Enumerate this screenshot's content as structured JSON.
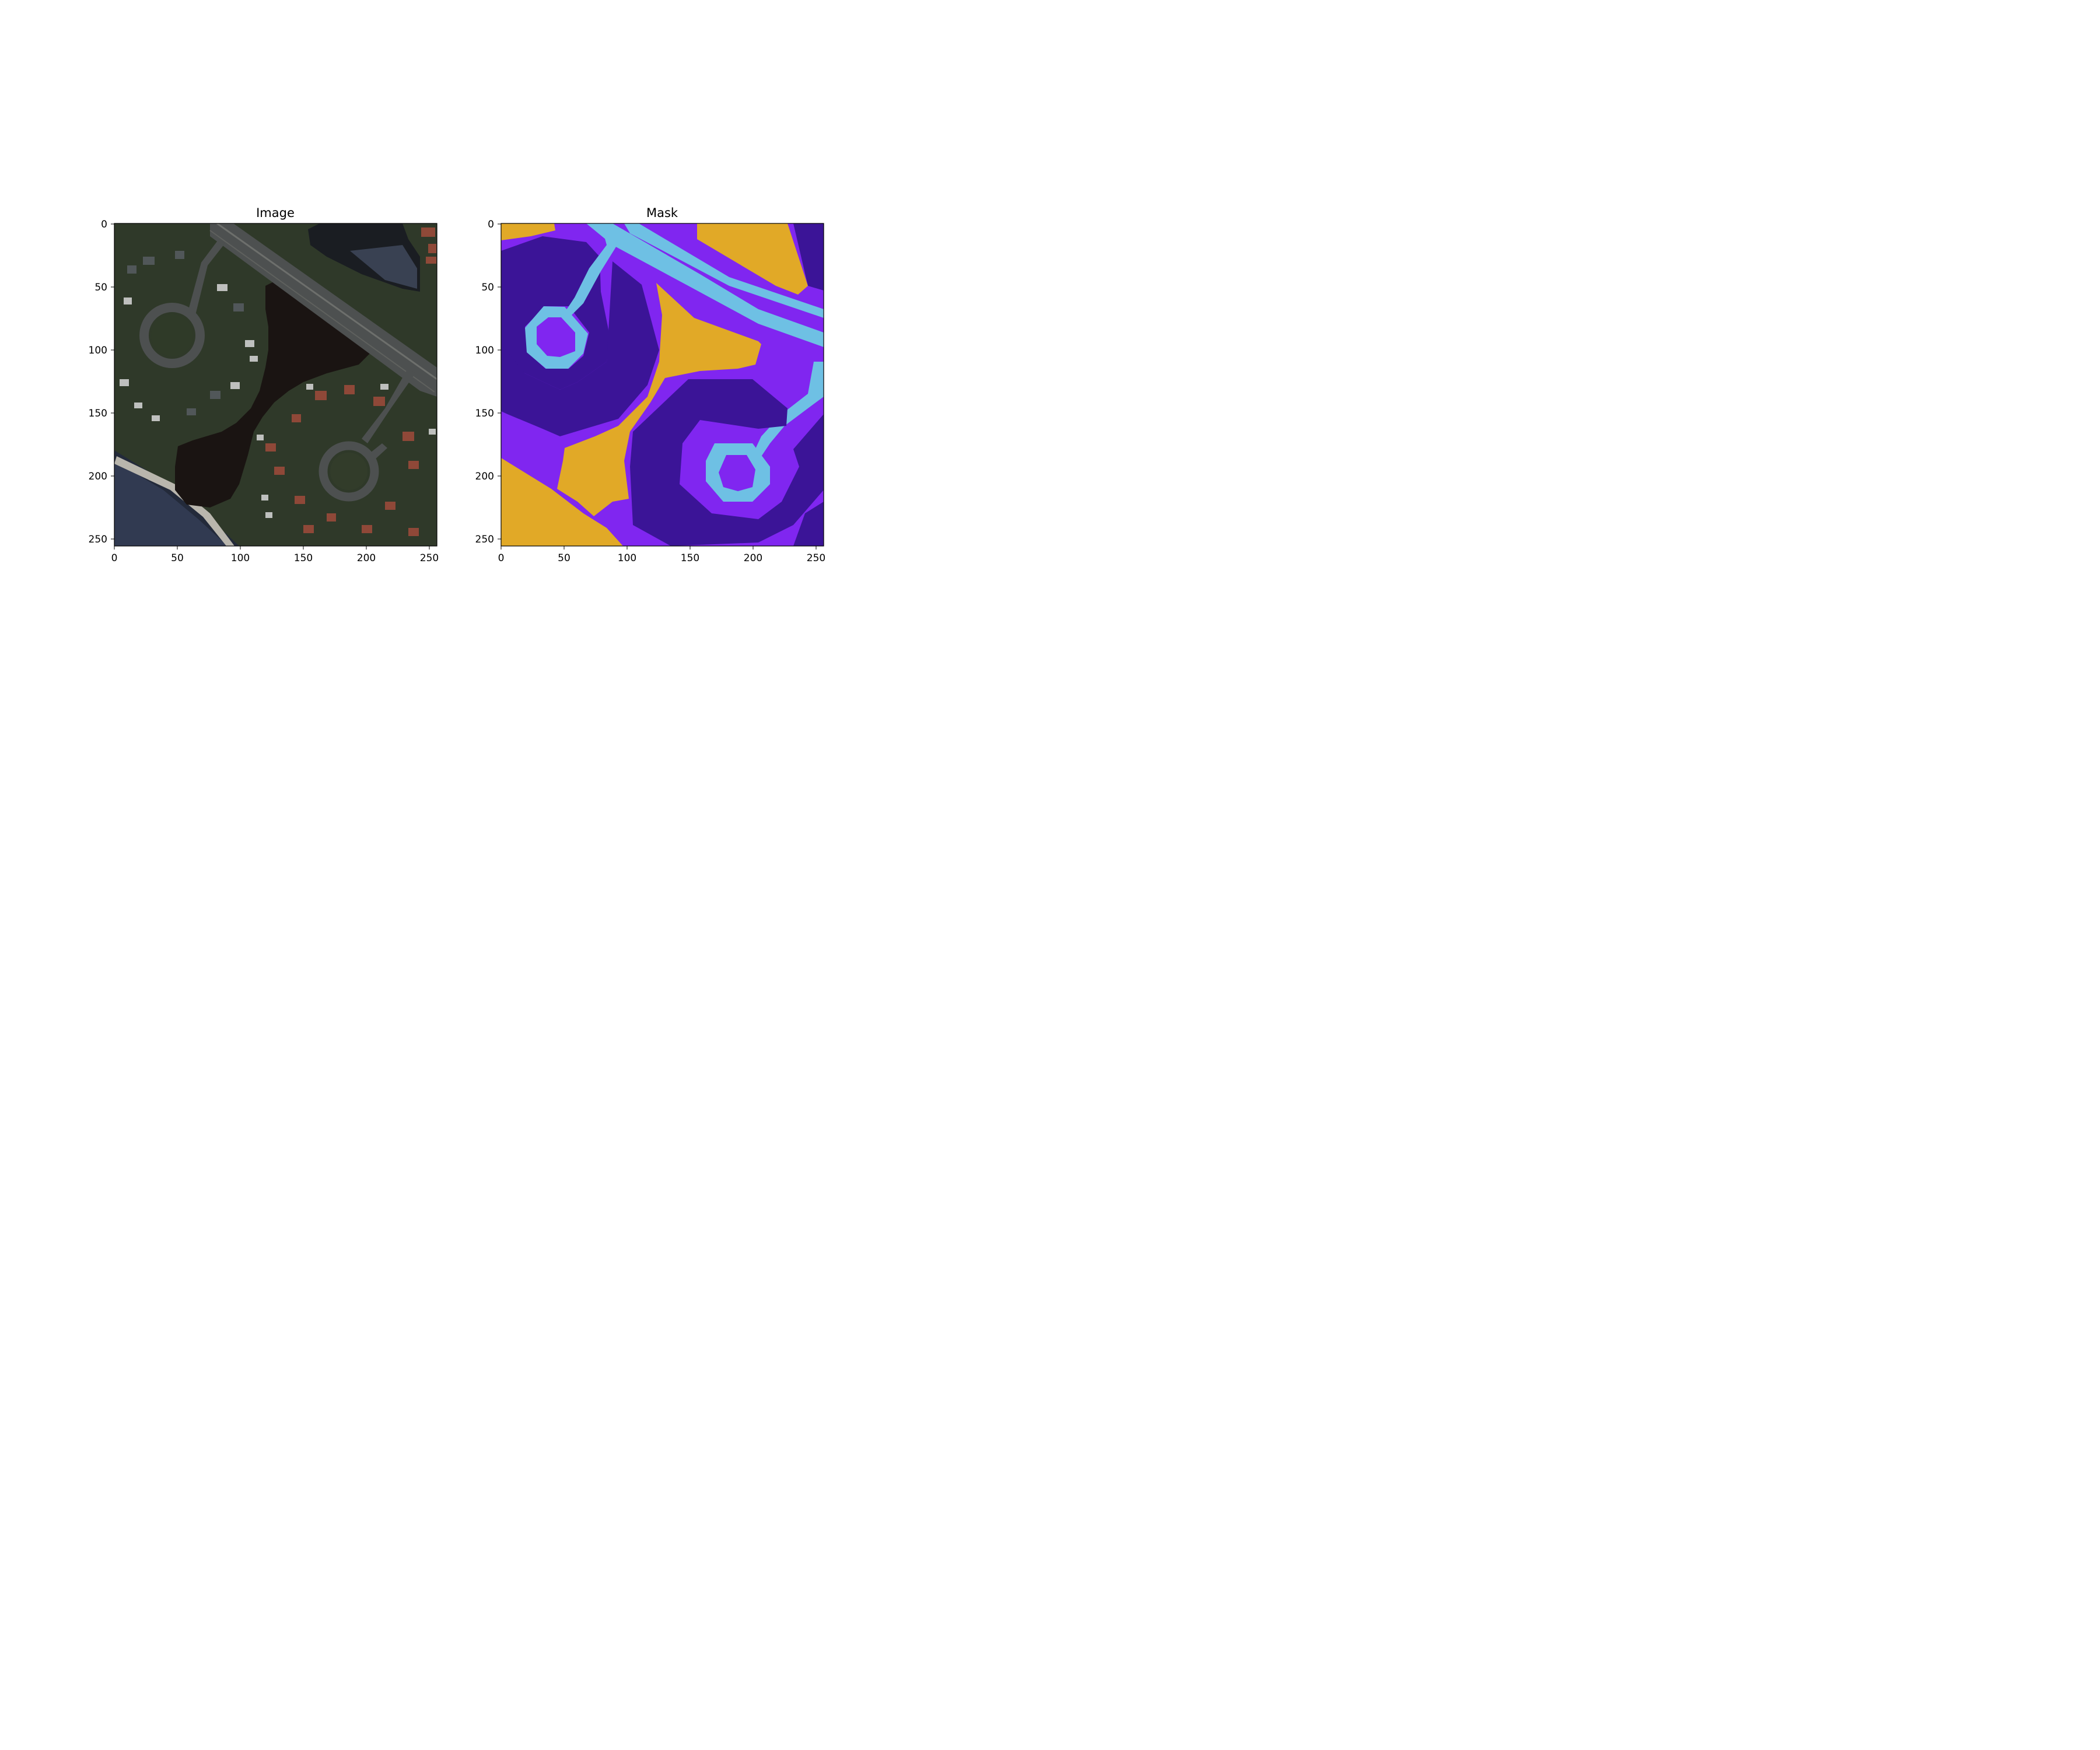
{
  "panels": [
    {
      "id": "image",
      "title": "Image"
    },
    {
      "id": "mask",
      "title": "Mask"
    }
  ],
  "xticks": [
    "0",
    "50",
    "100",
    "150",
    "200",
    "250"
  ],
  "yticks": [
    "0",
    "50",
    "100",
    "150",
    "200",
    "250"
  ],
  "colors": {
    "water": "#1a1412",
    "vegetation": "#35402e",
    "road": "#4d5050",
    "roof_red": "#9a4a3a",
    "roof_white": "#d8d8d8",
    "mask_orange": "#e1a927",
    "mask_violet": "#8026f0",
    "mask_dark_purple": "#3b1497",
    "mask_light_blue": "#6ec0e4"
  }
}
